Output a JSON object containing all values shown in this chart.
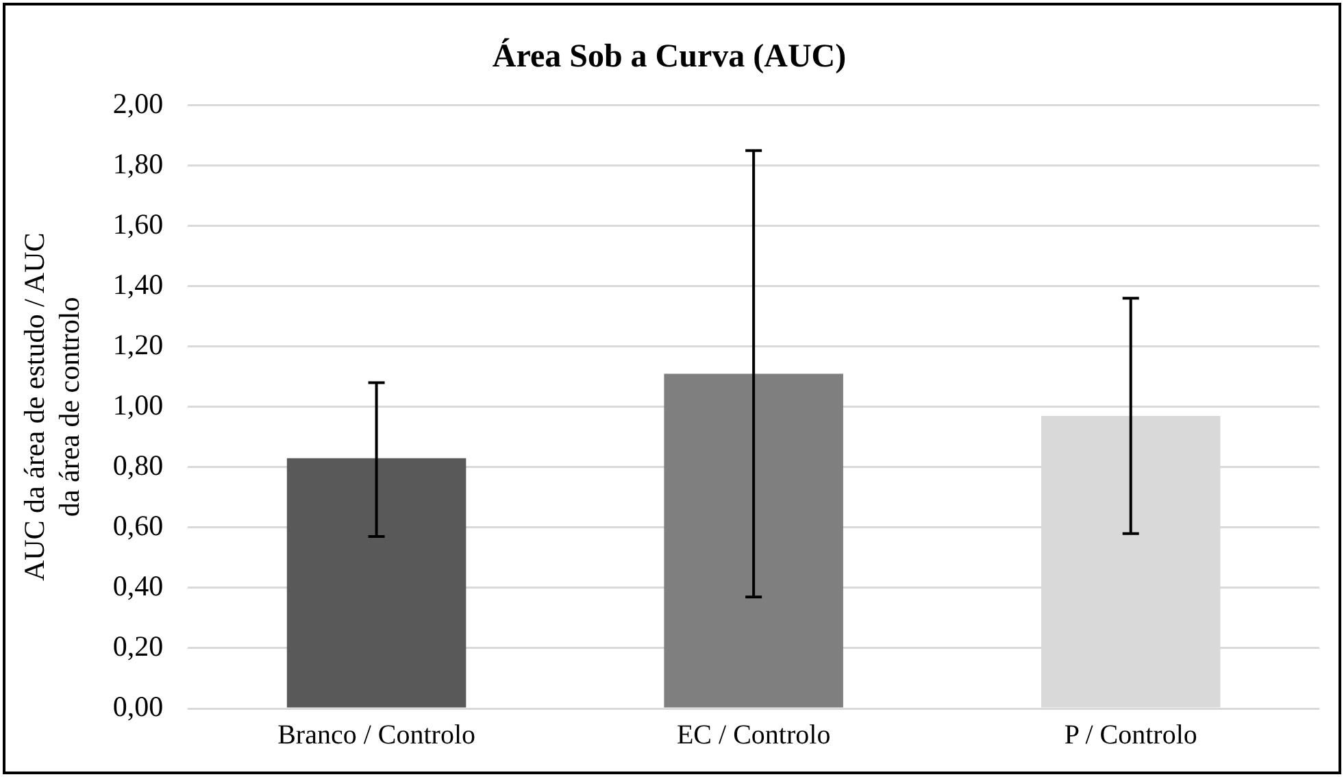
{
  "chart_data": {
    "type": "bar",
    "title": "Área Sob a Curva (AUC)",
    "ylabel": "AUC da área de estudo / AUC da área de controlo",
    "categories": [
      "Branco / Controlo",
      "EC / Controlo",
      "P / Controlo"
    ],
    "values": [
      0.83,
      1.11,
      0.97
    ],
    "colors": [
      "#595959",
      "#7f7f7f",
      "#d9d9d9"
    ],
    "errors": [
      [
        0.57,
        1.08
      ],
      [
        0.37,
        1.85
      ],
      [
        0.58,
        1.36
      ]
    ],
    "ylim": [
      0,
      2
    ],
    "yticks": [
      {
        "value": 0,
        "label": "0,00"
      },
      {
        "value": 0.2,
        "label": "0,20"
      },
      {
        "value": 0.4,
        "label": "0,40"
      },
      {
        "value": 0.6,
        "label": "0,60"
      },
      {
        "value": 0.8,
        "label": "0,80"
      },
      {
        "value": 1,
        "label": "1,00"
      },
      {
        "value": 1.2,
        "label": "1,20"
      },
      {
        "value": 1.4,
        "label": "1,40"
      },
      {
        "value": 1.6,
        "label": "1,60"
      },
      {
        "value": 1.8,
        "label": "1,80"
      },
      {
        "value": 2,
        "label": "2,00"
      }
    ],
    "grid": "y"
  }
}
